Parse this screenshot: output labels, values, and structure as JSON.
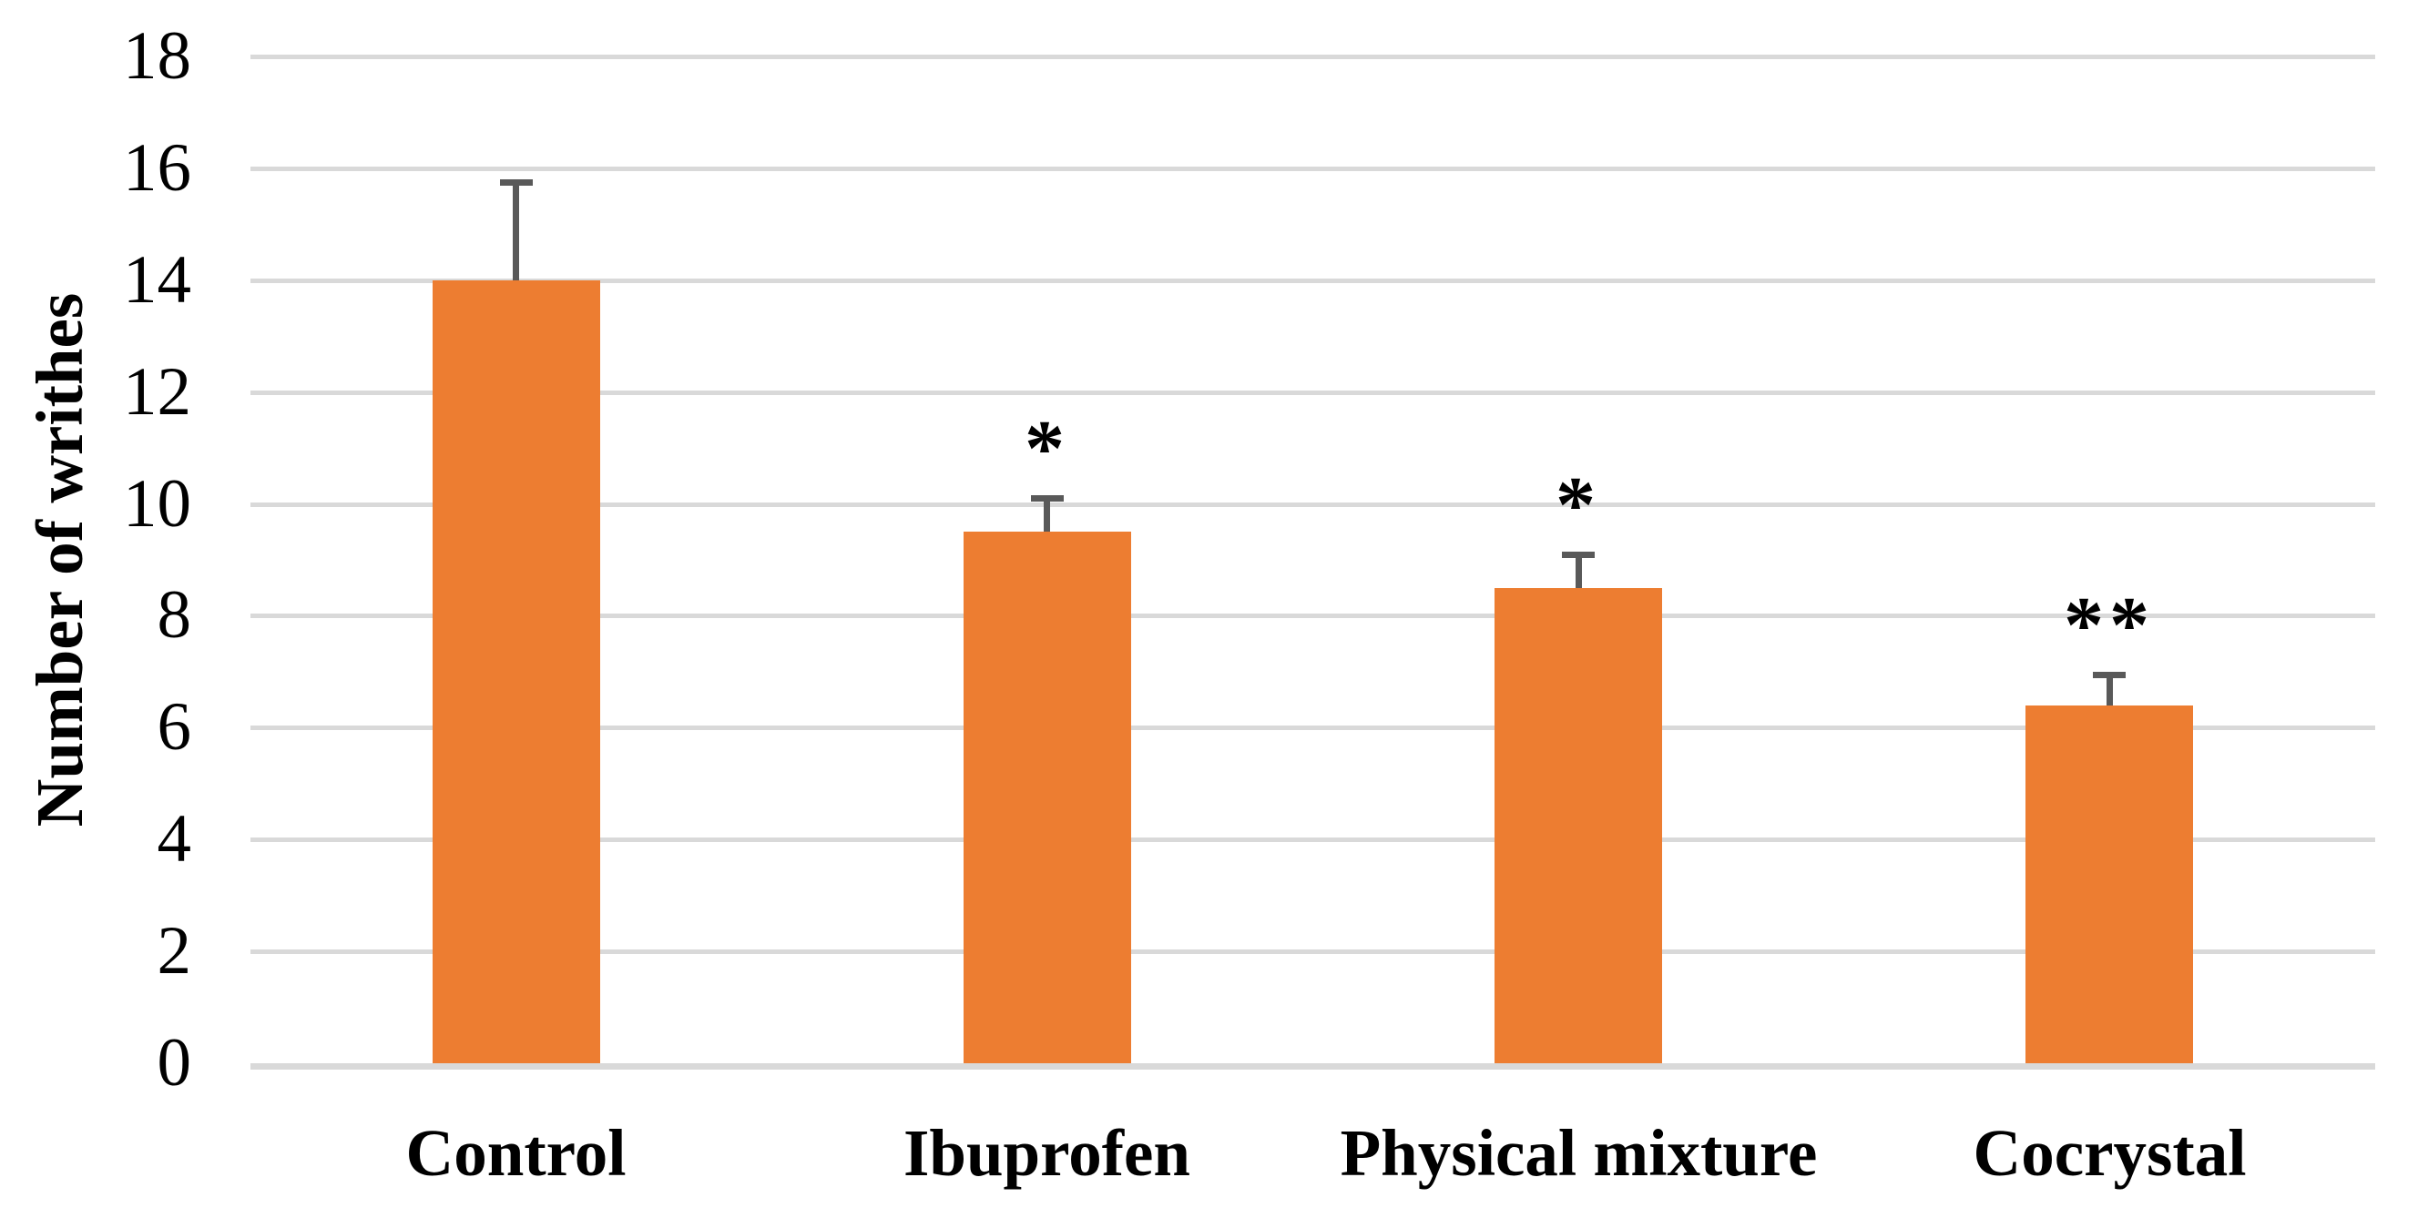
{
  "chart_data": {
    "type": "bar",
    "title": "",
    "ylabel": "Number of writhes",
    "xlabel": "",
    "categories": [
      "Control",
      "Ibuprofen",
      "Physical mixture",
      "Cocrystal"
    ],
    "values": [
      14.0,
      9.5,
      8.5,
      6.4
    ],
    "errors_plus": [
      1.75,
      0.6,
      0.6,
      0.55
    ],
    "annotations": [
      "",
      "*",
      "*",
      "**"
    ],
    "yticks": [
      0,
      2,
      4,
      6,
      8,
      10,
      12,
      14,
      16,
      18
    ],
    "ylim": [
      0,
      18
    ],
    "grid": true,
    "legend": false,
    "bar_color": "#ED7D31",
    "error_bar_color": "#595959",
    "gridline_color": "#D9D9D9",
    "background_color": "#FFFFFF",
    "text_color": "#000000"
  }
}
